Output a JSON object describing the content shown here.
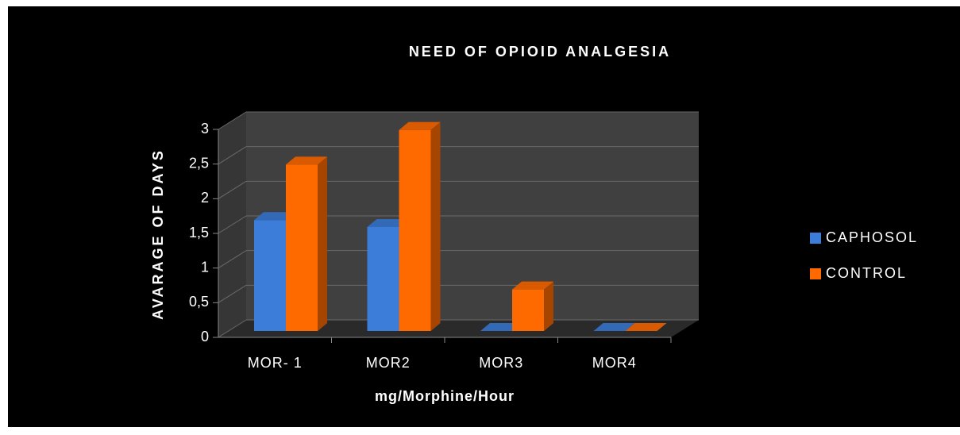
{
  "chart_data": {
    "type": "bar3d",
    "title": "NEED OF OPIOID ANALGESIA",
    "xlabel": "mg/Morphine/Hour",
    "ylabel": "AVARAGE OF DAYS",
    "categories": [
      "MOR- 1",
      "MOR2",
      "MOR3",
      "MOR4"
    ],
    "series": [
      {
        "name": "CAPHOSOL",
        "color": "#3b7dd8",
        "values": [
          1.6,
          1.5,
          0,
          0
        ]
      },
      {
        "name": "CONTROL",
        "color": "#ff6a00",
        "values": [
          2.4,
          2.9,
          0.6,
          0
        ]
      }
    ],
    "ylim": [
      0,
      3
    ],
    "yticks": [
      0,
      {
        "value": 0.5,
        "label": "0,5"
      },
      1,
      {
        "value": 1.5,
        "label": "1,5"
      },
      2,
      {
        "value": 2.5,
        "label": "2,5"
      },
      3
    ],
    "grid": true,
    "legend": "right"
  }
}
